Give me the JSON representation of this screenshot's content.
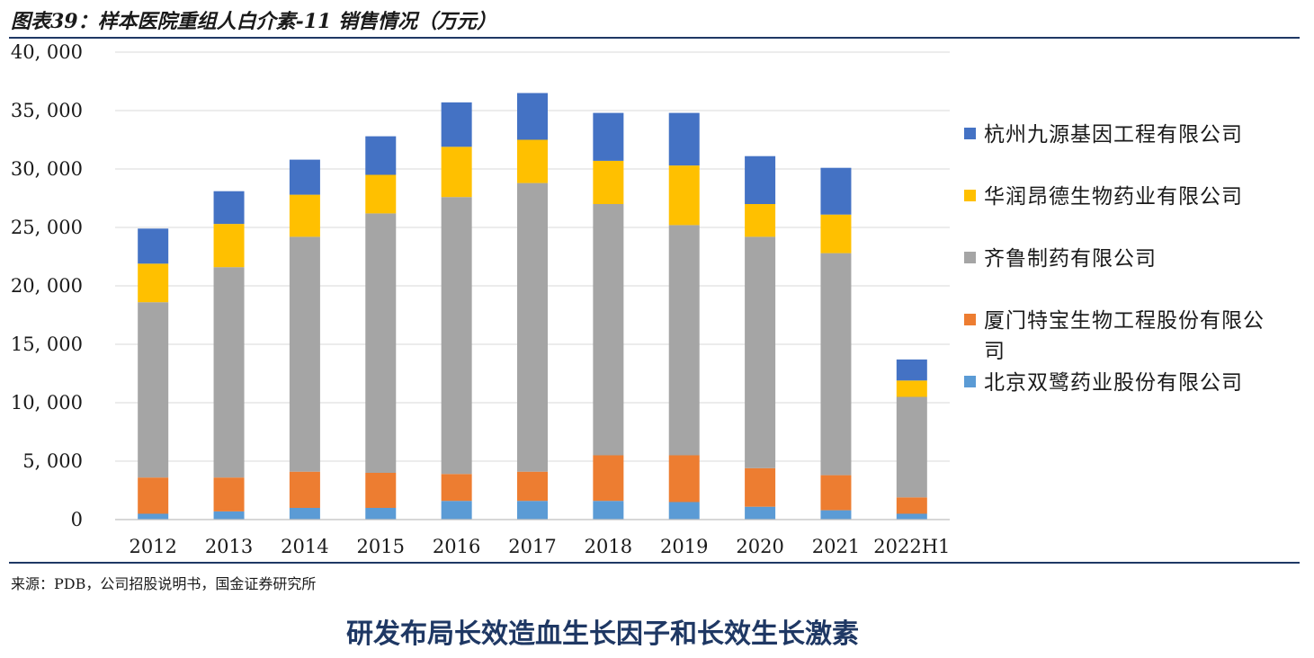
{
  "header": {
    "title": "图表39：样本医院重组人白介素-11 销售情况（万元）"
  },
  "source": "来源：PDB，公司招股说明书，国金证券研究所",
  "footer": {
    "title": "研发布局长效造血生长因子和长效生长激素"
  },
  "chart_data": {
    "type": "bar",
    "stacked": true,
    "title": "样本医院重组人白介素-11 销售情况（万元）",
    "xlabel": "",
    "ylabel": "",
    "ylim": [
      0,
      40000
    ],
    "yticks": [
      0,
      5000,
      10000,
      15000,
      20000,
      25000,
      30000,
      35000,
      40000
    ],
    "ytick_labels": [
      "0",
      "5, 000",
      "10, 000",
      "15, 000",
      "20, 000",
      "25, 000",
      "30, 000",
      "35, 000",
      "40, 000"
    ],
    "grid": true,
    "legend_position": "right",
    "categories": [
      "2012",
      "2013",
      "2014",
      "2015",
      "2016",
      "2017",
      "2018",
      "2019",
      "2020",
      "2021",
      "2022H1"
    ],
    "series": [
      {
        "name": "北京双鹭药业股份有限公司",
        "color": "#5b9bd5",
        "values": [
          500,
          700,
          1000,
          1000,
          1600,
          1600,
          1600,
          1500,
          1100,
          800,
          500
        ]
      },
      {
        "name": "厦门特宝生物工程股份有限公司",
        "color": "#ed7d31",
        "values": [
          3100,
          2900,
          3100,
          3000,
          2300,
          2500,
          3900,
          4000,
          3300,
          3000,
          1400
        ]
      },
      {
        "name": "齐鲁制药有限公司",
        "color": "#a5a5a5",
        "values": [
          15000,
          18000,
          20100,
          22200,
          23700,
          24700,
          21500,
          19700,
          19800,
          19000,
          8600
        ]
      },
      {
        "name": "华润昂德生物药业有限公司",
        "color": "#ffc000",
        "values": [
          3300,
          3700,
          3600,
          3300,
          4300,
          3700,
          3700,
          5100,
          2800,
          3300,
          1400
        ]
      },
      {
        "name": "杭州九源基因工程有限公司",
        "color": "#4472c4",
        "values": [
          3000,
          2800,
          3000,
          3300,
          3800,
          4000,
          4100,
          4500,
          4100,
          4000,
          1800
        ]
      }
    ]
  },
  "legend": {
    "items": [
      {
        "label": "杭州九源基因工程有限公司",
        "color": "#4472c4"
      },
      {
        "label": "华润昂德生物药业有限公司",
        "color": "#ffc000"
      },
      {
        "label": "齐鲁制药有限公司",
        "color": "#a5a5a5"
      },
      {
        "label": "厦门特宝生物工程股份有限公司",
        "color": "#ed7d31"
      },
      {
        "label": "北京双鹭药业股份有限公司",
        "color": "#5b9bd5"
      }
    ]
  }
}
